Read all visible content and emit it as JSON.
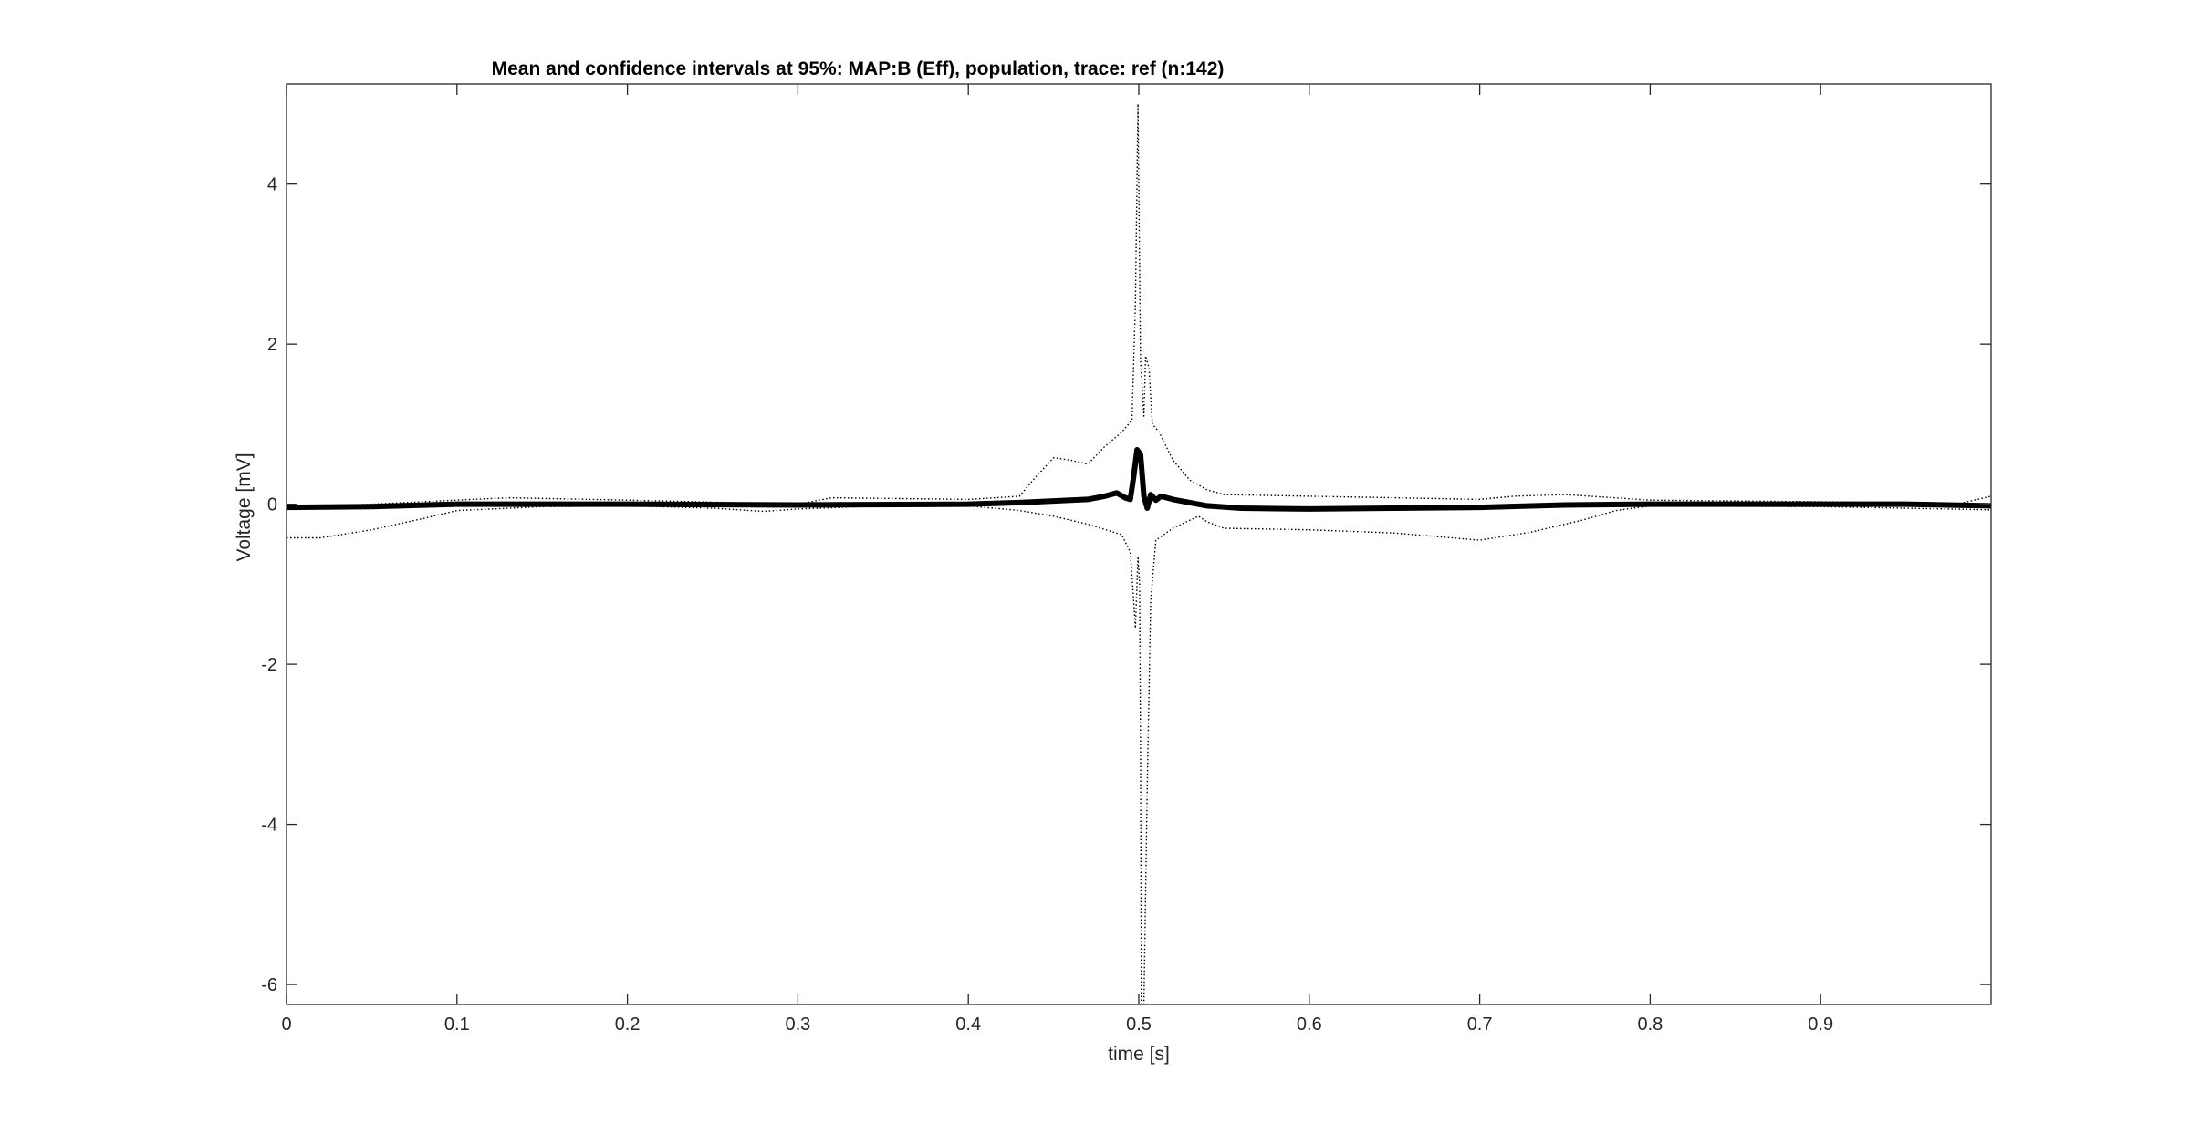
{
  "figure": {
    "background": "#ffffff"
  },
  "chart_data": {
    "type": "line",
    "title": "Mean and confidence intervals at 95%: MAP:B (Eff), population, trace: ref (n:142)",
    "xlabel": "time [s]",
    "ylabel": "Voltage [mV]",
    "xlim": [
      0,
      1.0
    ],
    "ylim": [
      -6.25,
      5.25
    ],
    "xticks": [
      0,
      0.1,
      0.2,
      0.3,
      0.4,
      0.5,
      0.6,
      0.7,
      0.8,
      0.9
    ],
    "xtick_labels": [
      "0",
      "0.1",
      "0.2",
      "0.3",
      "0.4",
      "0.5",
      "0.6",
      "0.7",
      "0.8",
      "0.9"
    ],
    "yticks": [
      -6,
      -4,
      -2,
      0,
      2,
      4
    ],
    "ytick_labels": [
      "-6",
      "-4",
      "-2",
      "0",
      "2",
      "4"
    ],
    "grid": false,
    "box": true,
    "series": [
      {
        "role": "mean",
        "color": "#000000",
        "style": "solid-thick",
        "points": [
          [
            0,
            -0.04
          ],
          [
            0.05,
            -0.03
          ],
          [
            0.1,
            0.0
          ],
          [
            0.2,
            0.0
          ],
          [
            0.3,
            -0.01
          ],
          [
            0.4,
            0.0
          ],
          [
            0.43,
            0.02
          ],
          [
            0.45,
            0.04
          ],
          [
            0.47,
            0.06
          ],
          [
            0.48,
            0.1
          ],
          [
            0.487,
            0.14
          ],
          [
            0.492,
            0.08
          ],
          [
            0.495,
            0.06
          ],
          [
            0.497,
            0.35
          ],
          [
            0.499,
            0.68
          ],
          [
            0.501,
            0.62
          ],
          [
            0.503,
            0.1
          ],
          [
            0.505,
            -0.05
          ],
          [
            0.507,
            0.12
          ],
          [
            0.51,
            0.05
          ],
          [
            0.513,
            0.1
          ],
          [
            0.52,
            0.06
          ],
          [
            0.54,
            -0.02
          ],
          [
            0.56,
            -0.05
          ],
          [
            0.6,
            -0.06
          ],
          [
            0.65,
            -0.05
          ],
          [
            0.7,
            -0.04
          ],
          [
            0.75,
            -0.01
          ],
          [
            0.8,
            0.0
          ],
          [
            0.85,
            0.0
          ],
          [
            0.9,
            0.0
          ],
          [
            0.95,
            0.0
          ],
          [
            1.0,
            -0.02
          ]
        ]
      },
      {
        "role": "upper-ci",
        "color": "#000000",
        "style": "dotted",
        "points": [
          [
            0,
            -0.05
          ],
          [
            0.05,
            0.0
          ],
          [
            0.1,
            0.05
          ],
          [
            0.13,
            0.08
          ],
          [
            0.2,
            0.05
          ],
          [
            0.3,
            0.0
          ],
          [
            0.32,
            0.08
          ],
          [
            0.4,
            0.06
          ],
          [
            0.43,
            0.1
          ],
          [
            0.44,
            0.35
          ],
          [
            0.45,
            0.58
          ],
          [
            0.46,
            0.55
          ],
          [
            0.47,
            0.5
          ],
          [
            0.48,
            0.72
          ],
          [
            0.49,
            0.9
          ],
          [
            0.496,
            1.05
          ],
          [
            0.498,
            2.5
          ],
          [
            0.4995,
            5.0
          ],
          [
            0.501,
            1.8
          ],
          [
            0.503,
            1.1
          ],
          [
            0.504,
            1.85
          ],
          [
            0.506,
            1.7
          ],
          [
            0.508,
            1.0
          ],
          [
            0.512,
            0.9
          ],
          [
            0.52,
            0.55
          ],
          [
            0.53,
            0.3
          ],
          [
            0.54,
            0.18
          ],
          [
            0.55,
            0.12
          ],
          [
            0.6,
            0.1
          ],
          [
            0.65,
            0.08
          ],
          [
            0.7,
            0.06
          ],
          [
            0.72,
            0.1
          ],
          [
            0.75,
            0.12
          ],
          [
            0.8,
            0.05
          ],
          [
            0.9,
            0.03
          ],
          [
            0.95,
            0.02
          ],
          [
            0.98,
            0.0
          ],
          [
            1.0,
            0.1
          ]
        ]
      },
      {
        "role": "lower-ci",
        "color": "#000000",
        "style": "dotted",
        "points": [
          [
            0,
            -0.42
          ],
          [
            0.02,
            -0.42
          ],
          [
            0.05,
            -0.32
          ],
          [
            0.08,
            -0.18
          ],
          [
            0.1,
            -0.08
          ],
          [
            0.15,
            -0.03
          ],
          [
            0.2,
            -0.02
          ],
          [
            0.25,
            -0.05
          ],
          [
            0.28,
            -0.09
          ],
          [
            0.3,
            -0.06
          ],
          [
            0.35,
            -0.02
          ],
          [
            0.4,
            -0.02
          ],
          [
            0.43,
            -0.08
          ],
          [
            0.45,
            -0.15
          ],
          [
            0.47,
            -0.25
          ],
          [
            0.49,
            -0.38
          ],
          [
            0.495,
            -0.6
          ],
          [
            0.497,
            -1.2
          ],
          [
            0.498,
            -1.55
          ],
          [
            0.4995,
            -0.65
          ],
          [
            0.5005,
            -1.0
          ],
          [
            0.501,
            -3.0
          ],
          [
            0.5015,
            -6.25
          ],
          [
            0.503,
            -6.25
          ],
          [
            0.505,
            -3.5
          ],
          [
            0.507,
            -1.2
          ],
          [
            0.51,
            -0.45
          ],
          [
            0.52,
            -0.3
          ],
          [
            0.53,
            -0.2
          ],
          [
            0.535,
            -0.15
          ],
          [
            0.54,
            -0.22
          ],
          [
            0.55,
            -0.3
          ],
          [
            0.6,
            -0.32
          ],
          [
            0.65,
            -0.36
          ],
          [
            0.7,
            -0.45
          ],
          [
            0.73,
            -0.35
          ],
          [
            0.76,
            -0.2
          ],
          [
            0.78,
            -0.08
          ],
          [
            0.8,
            -0.02
          ],
          [
            0.9,
            -0.03
          ],
          [
            0.95,
            -0.05
          ],
          [
            1.0,
            -0.07
          ]
        ]
      }
    ]
  }
}
